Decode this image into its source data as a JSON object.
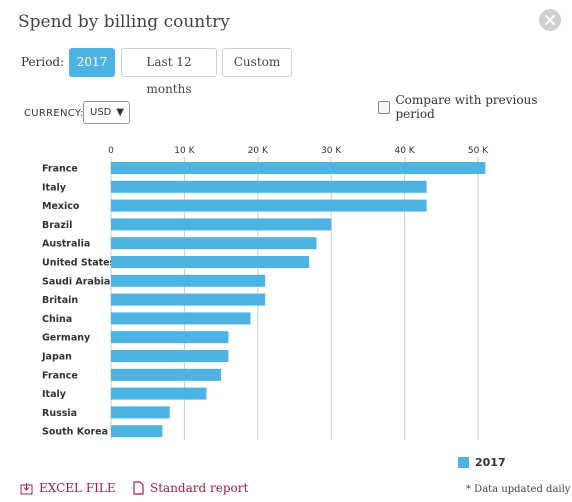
{
  "dialog": {
    "title": "Spend by billing country",
    "close_icon": "close-icon"
  },
  "period": {
    "label": "Period:",
    "options": [
      "2017",
      "Last 12 months",
      "Custom"
    ],
    "selected": "2017"
  },
  "currency": {
    "label": "CURRENCY:",
    "value": "USD",
    "caret": "▼"
  },
  "compare": {
    "label": "Compare with previous period",
    "checked": false
  },
  "chart_data": {
    "type": "bar",
    "orientation": "horizontal",
    "categories": [
      "France",
      "Italy",
      "Mexico",
      "Brazil",
      "Australia",
      "United States",
      "Saudi Arabia",
      "Britain",
      "China",
      "Germany",
      "Japan",
      "France",
      "Italy",
      "Russia",
      "South Korea"
    ],
    "series": [
      {
        "name": "2017",
        "values": [
          51000,
          43000,
          43000,
          30000,
          28000,
          27000,
          21000,
          21000,
          19000,
          16000,
          16000,
          15000,
          13000,
          8000,
          7000
        ]
      }
    ],
    "xlim": [
      0,
      50000
    ],
    "x_ticks": [
      0,
      10000,
      20000,
      30000,
      40000,
      50000
    ],
    "x_tick_labels": [
      "0",
      "10 K",
      "20 K",
      "30 K",
      "40 K",
      "50 K"
    ],
    "grid": true,
    "legend": "bottom-right",
    "color": "#4db3e2"
  },
  "footer": {
    "excel_label": "EXCEL FILE",
    "report_label": "Standard report",
    "note": "* Data updated daily",
    "accent": "#a51c46"
  }
}
